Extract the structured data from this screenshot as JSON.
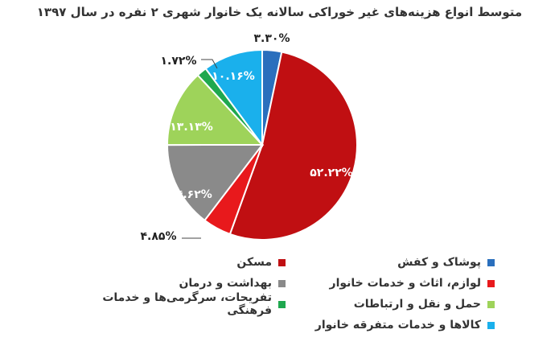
{
  "chart_data": {
    "type": "pie",
    "title": "متوسط انواع هزینه‌های غیر خوراکی سالانه یک خانوار شهری ۲ نفره  در سال ۱۳۹۷",
    "legend_position": "bottom",
    "slices": [
      {
        "name": "پوشاک و کفش",
        "value": 3.3,
        "label": "۳.۳۰%",
        "color": "#2a6fbd"
      },
      {
        "name": "مسکن",
        "value": 52.22,
        "label": "۵۲.۲۲%",
        "color": "#c00f12"
      },
      {
        "name": "لوازم، اثاث و خدمات خانوار",
        "value": 4.85,
        "label": "۴.۸۵%",
        "color": "#e8191c"
      },
      {
        "name": "بهداشت و درمان",
        "value": 14.62,
        "label": "۱۴.۶۲%",
        "color": "#8a8a8a"
      },
      {
        "name": "حمل و نقل و ارتباطات",
        "value": 13.13,
        "label": "۱۳.۱۳%",
        "color": "#9ed35a"
      },
      {
        "name": "تفریحات، سرگرمی‌ها و خدمات فرهنگی",
        "value": 1.72,
        "label": "۱.۷۲%",
        "color": "#1fa84f"
      },
      {
        "name": "کالاها و خدمات متفرقه خانوار",
        "value": 10.16,
        "label": "۱۰.۱۶%",
        "color": "#1ab0ec"
      }
    ]
  }
}
